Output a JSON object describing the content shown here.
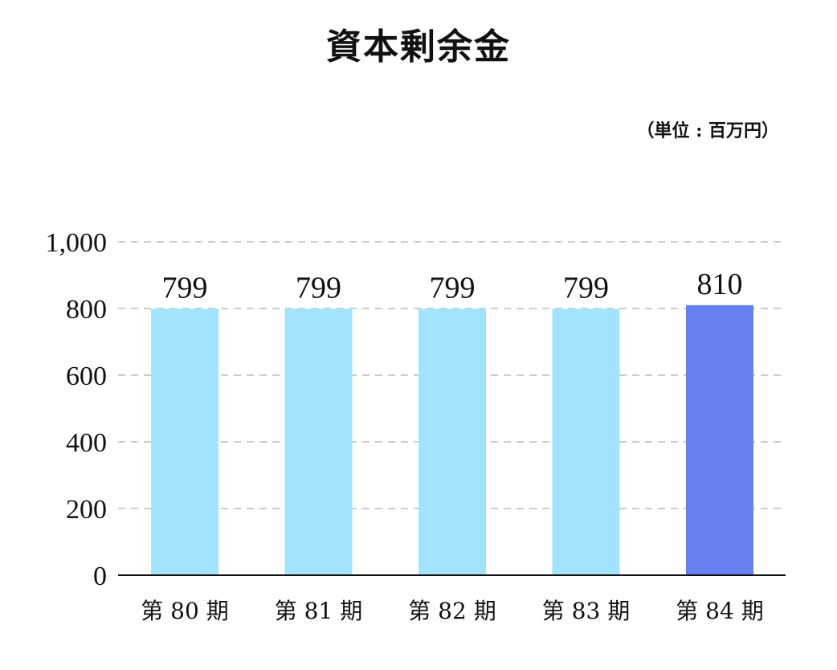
{
  "title": "資本剰余金",
  "unit": "（単位 : 百万円）",
  "colors": {
    "bar": "#a2e3fd",
    "bar_highlight": "#6681ef",
    "grid": "#cccccc",
    "axis": "#111111"
  },
  "chart_data": {
    "type": "bar",
    "title": "資本剰余金",
    "categories": [
      "第 80 期",
      "第 81 期",
      "第 82 期",
      "第 83 期",
      "第 84 期"
    ],
    "values": [
      799,
      799,
      799,
      799,
      810
    ],
    "value_labels": [
      "799",
      "799",
      "799",
      "799",
      "810"
    ],
    "highlight_index": 4,
    "ylim": [
      0,
      1000
    ],
    "yticks": [
      0,
      200,
      400,
      600,
      800,
      1000
    ],
    "ytick_labels": [
      "0",
      "200",
      "400",
      "600",
      "800",
      "1,000"
    ],
    "grid": true,
    "grid_style": "dashed",
    "legend": false
  }
}
